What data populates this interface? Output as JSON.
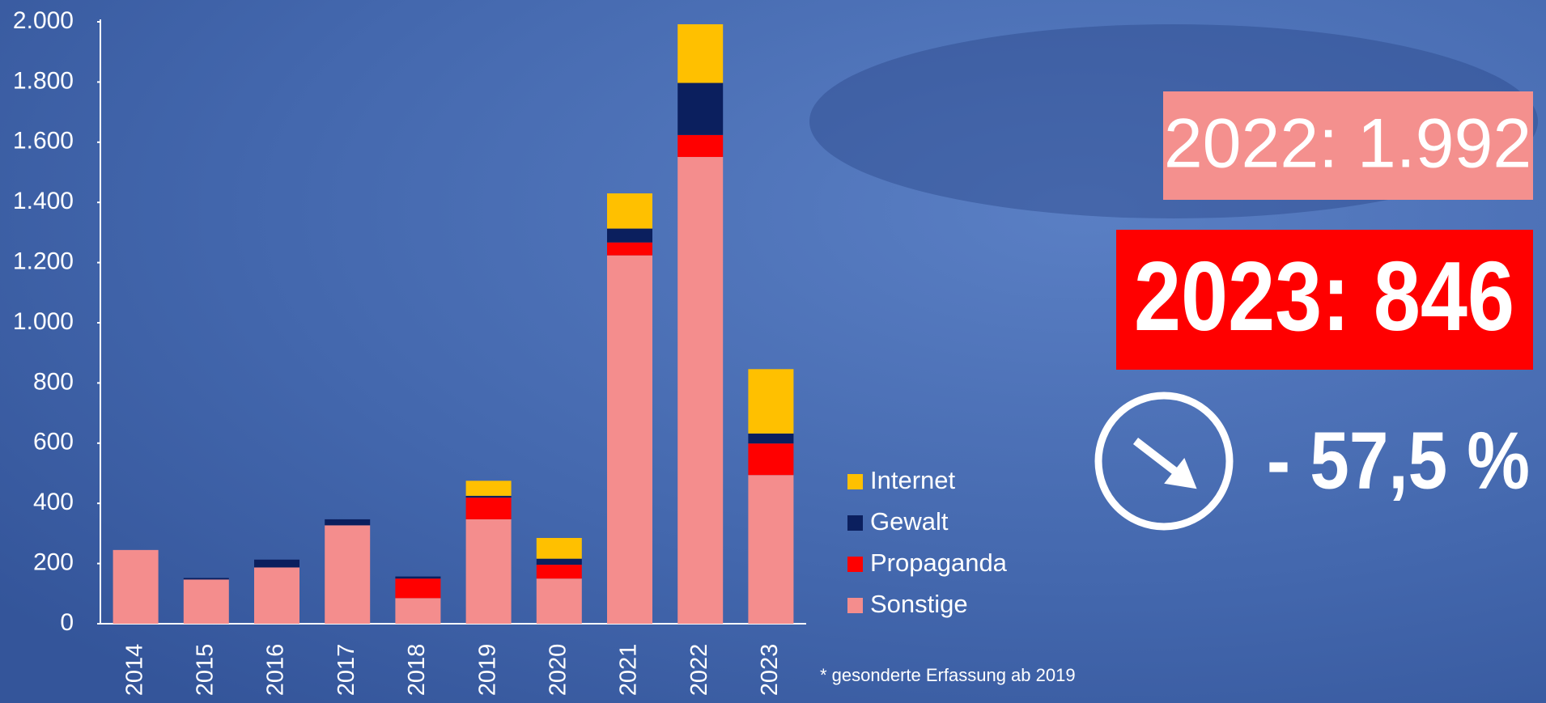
{
  "chart_data": {
    "type": "stacked_bar",
    "categories": [
      "2014",
      "2015",
      "2016",
      "2017",
      "2018",
      "2019",
      "2020",
      "2021",
      "2022",
      "2023"
    ],
    "series": [
      {
        "name": "Sonstige",
        "color": "#f48d8d",
        "values": [
          245,
          147,
          187,
          327,
          85,
          347,
          150,
          1224,
          1551,
          494
        ]
      },
      {
        "name": "Propaganda",
        "color": "#ff0000",
        "values": [
          0,
          0,
          0,
          0,
          65,
          72,
          46,
          43,
          73,
          105
        ]
      },
      {
        "name": "Gewalt",
        "color": "#0b1f5e",
        "values": [
          0,
          5,
          26,
          20,
          7,
          6,
          20,
          46,
          173,
          33
        ]
      },
      {
        "name": "Internet",
        "color": "#ffc000",
        "values": [
          0,
          0,
          0,
          0,
          0,
          50,
          69,
          117,
          195,
          214
        ]
      }
    ],
    "ylim": [
      0,
      2000
    ],
    "yticks": [
      0,
      200,
      400,
      600,
      800,
      {
        "value": 1000,
        "label": "1.000"
      },
      {
        "value": 1200,
        "label": "1.200"
      },
      {
        "value": 1400,
        "label": "1.400"
      },
      {
        "value": 1600,
        "label": "1.600"
      },
      {
        "value": 1800,
        "label": "1.800"
      },
      {
        "value": 2000,
        "label": "2.000"
      }
    ],
    "annotations": {
      "previous": "2022: 1.992",
      "current": "2023: 846",
      "change": "- 57,5 %",
      "footnote": "* gesonderte Erfassung ab 2019"
    }
  }
}
